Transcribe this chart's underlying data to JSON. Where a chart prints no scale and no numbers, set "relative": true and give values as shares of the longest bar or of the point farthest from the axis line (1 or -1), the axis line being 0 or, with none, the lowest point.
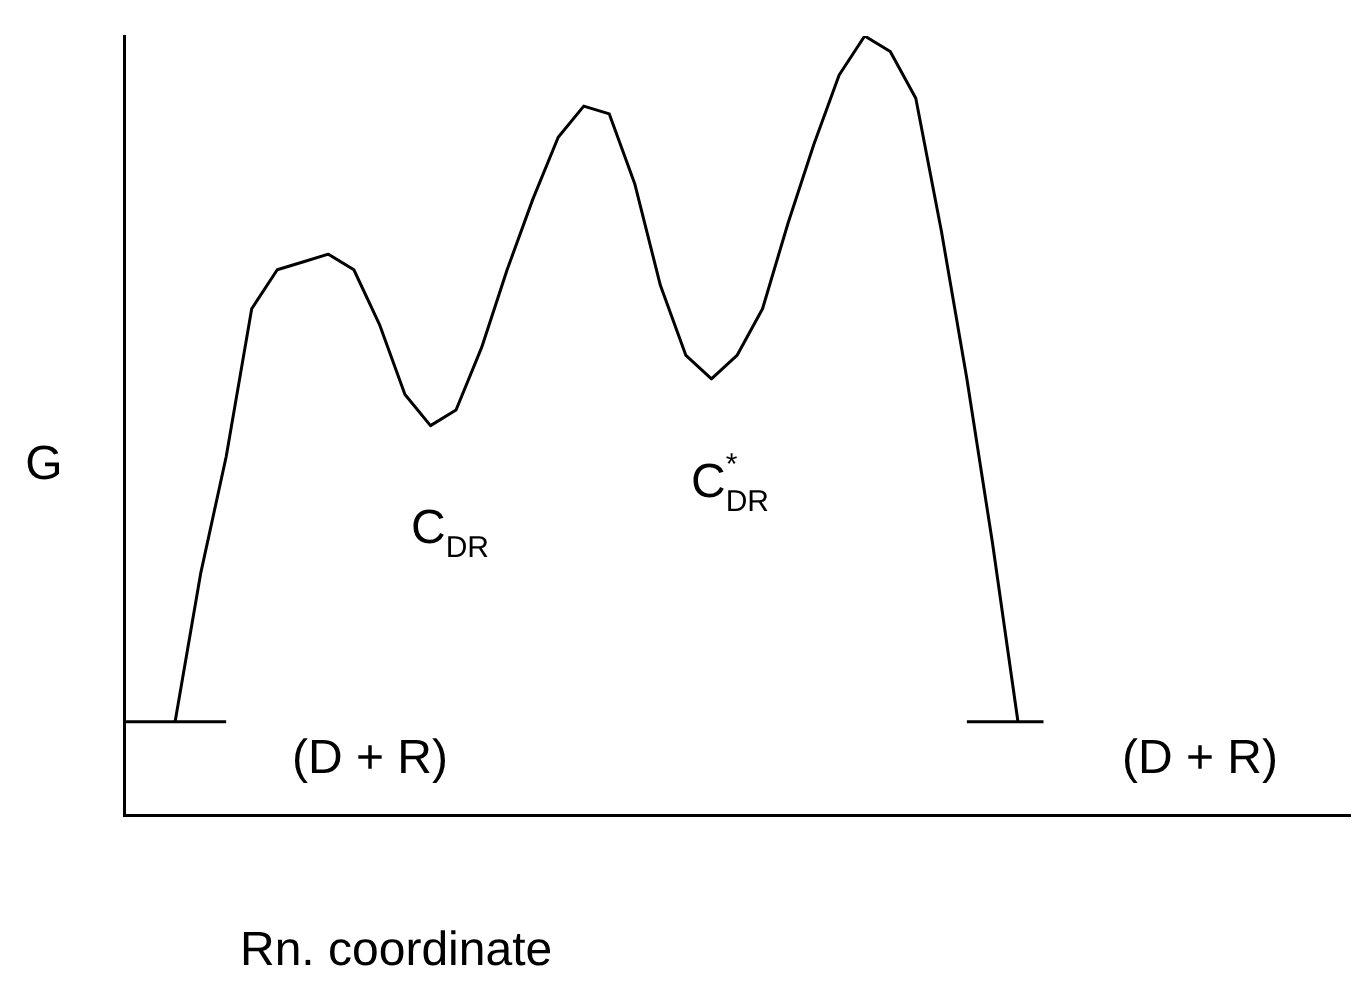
{
  "chart_data": {
    "type": "line",
    "relative": true,
    "xlabel": "Rn. coordinate",
    "ylabel": "G",
    "grid": false,
    "legend": false,
    "marker": "none",
    "line_style": "solid",
    "categories": [
      null,
      null,
      null,
      null,
      null,
      null,
      null,
      null,
      null,
      null,
      null,
      null,
      null,
      null,
      null,
      null,
      null,
      null,
      null,
      null,
      null,
      null,
      null,
      null,
      null,
      null,
      null,
      null,
      null,
      null,
      null,
      null,
      null,
      null,
      null,
      null,
      null,
      null,
      null,
      null,
      null,
      null,
      null,
      null,
      null,
      null,
      null,
      null,
      null
    ],
    "series": [
      {
        "color": "#000000",
        "values": [
          null,
          null,
          0.12,
          0.31,
          0.46,
          0.65,
          0.7,
          0.71,
          0.72,
          0.7,
          0.63,
          0.54,
          0.5,
          0.52,
          0.6,
          0.7,
          0.79,
          0.87,
          0.91,
          0.9,
          0.81,
          0.68,
          0.59,
          0.56,
          0.59,
          0.65,
          0.76,
          0.86,
          0.95,
          1,
          0.98,
          0.92,
          0.75,
          0.56,
          0.35,
          0.12,
          null,
          null,
          null,
          null,
          null,
          null,
          null,
          null,
          null,
          null,
          null,
          null,
          null
        ]
      },
      {
        "color": "#000000",
        "values": [
          0.12,
          0.12,
          0.12,
          0.12,
          0.12,
          null,
          null,
          null,
          null,
          null,
          null,
          null,
          null,
          null,
          null,
          null,
          null,
          null,
          null,
          null,
          null,
          null,
          null,
          null,
          null,
          null,
          null,
          null,
          null,
          null,
          null,
          null,
          null,
          null,
          null,
          null,
          null,
          null,
          null,
          null,
          null,
          null,
          null,
          null,
          null,
          null,
          null,
          null,
          null
        ]
      },
      {
        "color": "#000000",
        "values": [
          null,
          null,
          null,
          null,
          null,
          null,
          null,
          null,
          null,
          null,
          null,
          null,
          null,
          null,
          null,
          null,
          null,
          null,
          null,
          null,
          null,
          null,
          null,
          null,
          null,
          null,
          null,
          null,
          null,
          null,
          null,
          null,
          null,
          0.12,
          0.12,
          0.12,
          0.12,
          null,
          null,
          null,
          null,
          null,
          null,
          null,
          null,
          null,
          null,
          null,
          null
        ]
      }
    ],
    "annotations": [
      "(D + R)",
      "C$_{DR}$",
      "C$^{*}$$_{DR}$",
      "(D + R)"
    ]
  }
}
